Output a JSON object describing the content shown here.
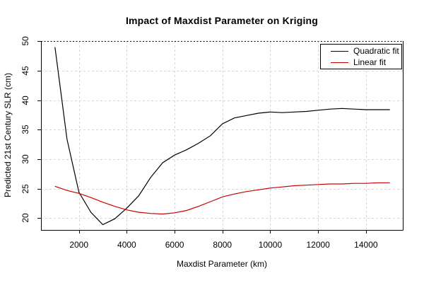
{
  "chart_data": {
    "type": "line",
    "title": "Impact of Maxdist Parameter on Kriging",
    "xlabel": "Maxdist Parameter (km)",
    "ylabel": "Predicted 21st Century SLR (cm)",
    "xlim": [
      414,
      15540
    ],
    "ylim": [
      18.0,
      50.04
    ],
    "xticks": [
      2000,
      4000,
      6000,
      8000,
      10000,
      12000,
      14000
    ],
    "yticks": [
      20,
      25,
      30,
      35,
      40,
      45,
      50
    ],
    "grid": "dashed light gray at every tick",
    "grid_color": "#d6d6d6",
    "reference_line": {
      "y": 50,
      "style": "dotted",
      "color": "#000000"
    },
    "legend_position": "top-right",
    "x": [
      1000,
      1500,
      2000,
      2500,
      3000,
      3500,
      4000,
      4500,
      5000,
      5500,
      6000,
      6500,
      7000,
      7500,
      8000,
      8500,
      9000,
      9500,
      10000,
      10500,
      11000,
      11500,
      12000,
      12500,
      13000,
      13500,
      14000,
      14500,
      15000
    ],
    "series": [
      {
        "name": "Quadratic fit",
        "color": "#000000",
        "values": [
          49.0,
          33.4,
          24.4,
          21.0,
          18.9,
          19.9,
          21.7,
          23.8,
          26.9,
          29.4,
          30.7,
          31.6,
          32.7,
          34.0,
          36.0,
          37.0,
          37.4,
          37.8,
          38.0,
          37.9,
          38.0,
          38.1,
          38.3,
          38.5,
          38.6,
          38.5,
          38.4,
          38.4,
          38.4
        ]
      },
      {
        "name": "Linear fit",
        "color": "#cc0000",
        "values": [
          25.4,
          24.7,
          24.2,
          23.5,
          22.7,
          22.0,
          21.4,
          21.0,
          20.8,
          20.7,
          20.9,
          21.3,
          22.0,
          22.8,
          23.6,
          24.1,
          24.5,
          24.8,
          25.1,
          25.3,
          25.5,
          25.6,
          25.7,
          25.8,
          25.8,
          25.9,
          25.9,
          26.0,
          26.0
        ]
      }
    ]
  }
}
